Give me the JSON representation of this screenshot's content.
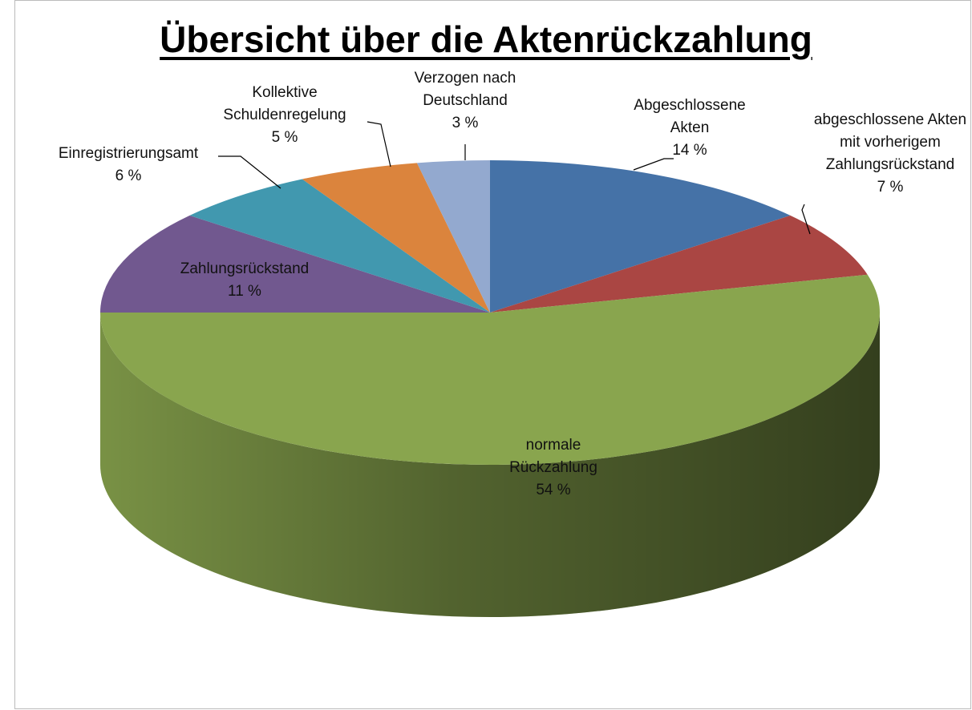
{
  "chart_data": {
    "type": "pie3d",
    "title": "Übersicht über die Aktenrückzahlung",
    "categories": [
      "Abgeschlossene Akten",
      "abgeschlossene Akten mit vorherigem Zahlungsrückstand",
      "normale Rückzahlung",
      "Zahlungsrückstand",
      "Einregistrierungsamt",
      "Kollektive Schuldenregelung",
      "Verzogen nach Deutschland"
    ],
    "values": [
      14,
      7,
      54,
      11,
      6,
      5,
      3
    ],
    "value_labels": [
      "14 %",
      "7 %",
      "54 %",
      "11 %",
      "6 %",
      "5 %",
      "3 %"
    ],
    "colors": [
      "#4572a7",
      "#aa4643",
      "#89a54e",
      "#71588f",
      "#4198af",
      "#db843d",
      "#93a9cf"
    ]
  }
}
